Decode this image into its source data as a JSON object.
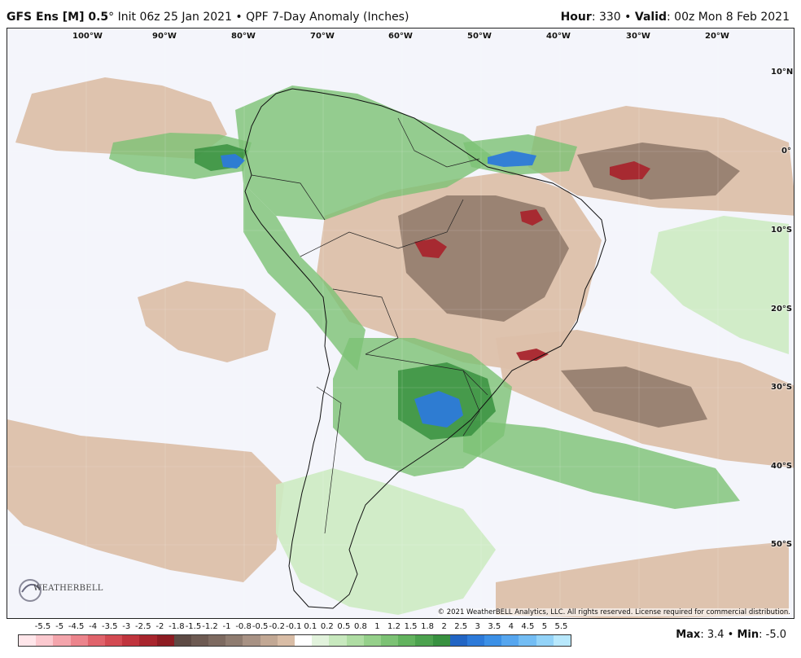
{
  "header": {
    "model": "GFS Ens [M] 0.5",
    "degree": "°",
    "init": " Init 06z 25 Jan 2021",
    "bullet": " • ",
    "product": "QPF 7-Day Anomaly (Inches)",
    "hour_label": "Hour",
    "hour_value": ": 330",
    "valid_label": "Valid",
    "valid_value": ": 00z Mon 8 Feb 2021"
  },
  "map": {
    "longitude_labels": [
      "100°W",
      "90°W",
      "80°W",
      "70°W",
      "60°W",
      "50°W",
      "40°W",
      "30°W",
      "20°W"
    ],
    "latitude_labels": [
      "10°N",
      "0°",
      "10°S",
      "20°S",
      "30°S",
      "40°S",
      "50°S"
    ],
    "copyright": "© 2021 WeatherBELL Analytics, LLC. All rights reserved. License required for commercial distribution.",
    "logo_text": "WEATHERBELL",
    "logo_icon": "weatherbell-logo-icon"
  },
  "legend": {
    "tick_labels": [
      "-5.5",
      "-5",
      "-4.5",
      "-4",
      "-3.5",
      "-3",
      "-2.5",
      "-2",
      "-1.8",
      "-1.5",
      "-1.2",
      "-1",
      "-0.8",
      "-0.5",
      "-0.2",
      "-0.1",
      "0.1",
      "0.2",
      "0.5",
      "0.8",
      "1",
      "1.2",
      "1.5",
      "1.8",
      "2",
      "2.5",
      "3",
      "3.5",
      "4",
      "4.5",
      "5",
      "5.5"
    ],
    "colors": [
      "#ffe6ea",
      "#fbc9cf",
      "#f4a5ac",
      "#ec848c",
      "#e0636b",
      "#d34a52",
      "#c0343d",
      "#a8252d",
      "#8d1c22",
      "#5d4a44",
      "#6d5a52",
      "#7d6a60",
      "#8f7c70",
      "#a89284",
      "#c2a894",
      "#d9bda6",
      "#ffffff",
      "#e2f3dc",
      "#c8e9be",
      "#afdda3",
      "#95d08a",
      "#7cc274",
      "#62b35e",
      "#4ca24e",
      "#389140",
      "#2265c4",
      "#2d7ad9",
      "#3c90e6",
      "#56a6ef",
      "#73bdf4",
      "#93d3f8",
      "#b8e8fc"
    ],
    "max_label": "Max",
    "max_value": ": 3.4",
    "min_label": "Min",
    "min_value": ": -5.0",
    "separator": " • "
  },
  "fields": [
    {
      "name": "tan-west-pacific-band",
      "tone": "dry-light",
      "pts": [
        [
          30,
          80
        ],
        [
          120,
          60
        ],
        [
          190,
          70
        ],
        [
          250,
          90
        ],
        [
          270,
          130
        ],
        [
          230,
          160
        ],
        [
          150,
          155
        ],
        [
          60,
          150
        ],
        [
          10,
          140
        ]
      ]
    },
    {
      "name": "green-east-pacific-band",
      "tone": "wet-mid",
      "pts": [
        [
          130,
          140
        ],
        [
          200,
          128
        ],
        [
          260,
          130
        ],
        [
          300,
          140
        ],
        [
          290,
          175
        ],
        [
          230,
          185
        ],
        [
          160,
          175
        ],
        [
          125,
          160
        ]
      ]
    },
    {
      "name": "tan-pacific-southern-gyre",
      "tone": "dry-light",
      "pts": [
        [
          0,
          480
        ],
        [
          90,
          500
        ],
        [
          200,
          510
        ],
        [
          300,
          520
        ],
        [
          340,
          560
        ],
        [
          330,
          640
        ],
        [
          290,
          680
        ],
        [
          200,
          665
        ],
        [
          110,
          640
        ],
        [
          20,
          610
        ],
        [
          0,
          590
        ]
      ]
    },
    {
      "name": "tan-pacific-mid",
      "tone": "dry-light",
      "pts": [
        [
          160,
          330
        ],
        [
          220,
          310
        ],
        [
          290,
          320
        ],
        [
          330,
          350
        ],
        [
          320,
          395
        ],
        [
          270,
          410
        ],
        [
          210,
          395
        ],
        [
          170,
          365
        ]
      ]
    },
    {
      "name": "tan-atlantic-equatorial",
      "tone": "dry-light",
      "pts": [
        [
          650,
          120
        ],
        [
          760,
          95
        ],
        [
          880,
          110
        ],
        [
          960,
          140
        ],
        [
          970,
          230
        ],
        [
          900,
          225
        ],
        [
          800,
          220
        ],
        [
          700,
          205
        ],
        [
          640,
          170
        ]
      ]
    },
    {
      "name": "brown-atlantic-equatorial-core",
      "tone": "dry-dark",
      "pts": [
        [
          700,
          155
        ],
        [
          780,
          140
        ],
        [
          860,
          150
        ],
        [
          900,
          175
        ],
        [
          870,
          205
        ],
        [
          790,
          210
        ],
        [
          720,
          195
        ]
      ]
    },
    {
      "name": "tan-brazil-interior",
      "tone": "dry-light",
      "pts": [
        [
          390,
          230
        ],
        [
          470,
          200
        ],
        [
          550,
          185
        ],
        [
          620,
          175
        ],
        [
          690,
          200
        ],
        [
          730,
          260
        ],
        [
          710,
          340
        ],
        [
          680,
          390
        ],
        [
          630,
          420
        ],
        [
          560,
          410
        ],
        [
          480,
          380
        ],
        [
          420,
          360
        ],
        [
          380,
          300
        ]
      ]
    },
    {
      "name": "brown-brazil-core",
      "tone": "dry-dark",
      "pts": [
        [
          480,
          230
        ],
        [
          540,
          205
        ],
        [
          600,
          205
        ],
        [
          660,
          220
        ],
        [
          690,
          270
        ],
        [
          660,
          330
        ],
        [
          610,
          360
        ],
        [
          540,
          350
        ],
        [
          490,
          300
        ]
      ]
    },
    {
      "name": "tan-south-atlantic",
      "tone": "dry-light",
      "pts": [
        [
          600,
          380
        ],
        [
          700,
          370
        ],
        [
          800,
          390
        ],
        [
          900,
          410
        ],
        [
          970,
          440
        ],
        [
          970,
          540
        ],
        [
          880,
          530
        ],
        [
          780,
          510
        ],
        [
          680,
          470
        ],
        [
          610,
          440
        ]
      ]
    },
    {
      "name": "brown-south-atlantic-core",
      "tone": "dry-dark",
      "pts": [
        [
          680,
          420
        ],
        [
          760,
          415
        ],
        [
          840,
          440
        ],
        [
          860,
          480
        ],
        [
          800,
          490
        ],
        [
          720,
          470
        ]
      ]
    },
    {
      "name": "green-amazon-north",
      "tone": "wet-mid",
      "pts": [
        [
          280,
          100
        ],
        [
          350,
          70
        ],
        [
          430,
          80
        ],
        [
          500,
          110
        ],
        [
          560,
          130
        ],
        [
          600,
          160
        ],
        [
          540,
          195
        ],
        [
          460,
          210
        ],
        [
          390,
          235
        ],
        [
          330,
          230
        ],
        [
          290,
          190
        ]
      ]
    },
    {
      "name": "green-andes-strip",
      "tone": "wet-mid",
      "pts": [
        [
          290,
          190
        ],
        [
          330,
          230
        ],
        [
          360,
          280
        ],
        [
          400,
          320
        ],
        [
          440,
          370
        ],
        [
          430,
          420
        ],
        [
          410,
          400
        ],
        [
          370,
          350
        ],
        [
          320,
          300
        ],
        [
          290,
          250
        ]
      ]
    },
    {
      "name": "green-guianas-strip",
      "tone": "wet-mid",
      "pts": [
        [
          560,
          140
        ],
        [
          640,
          130
        ],
        [
          700,
          145
        ],
        [
          690,
          175
        ],
        [
          620,
          180
        ],
        [
          570,
          170
        ]
      ]
    },
    {
      "name": "green-plata-basin",
      "tone": "wet-mid",
      "pts": [
        [
          420,
          380
        ],
        [
          500,
          380
        ],
        [
          570,
          400
        ],
        [
          620,
          440
        ],
        [
          610,
          500
        ],
        [
          560,
          540
        ],
        [
          500,
          550
        ],
        [
          440,
          530
        ],
        [
          400,
          490
        ],
        [
          400,
          430
        ]
      ]
    },
    {
      "name": "green-south-atlantic-band",
      "tone": "wet-mid",
      "pts": [
        [
          560,
          480
        ],
        [
          660,
          490
        ],
        [
          760,
          510
        ],
        [
          870,
          540
        ],
        [
          900,
          580
        ],
        [
          820,
          590
        ],
        [
          720,
          570
        ],
        [
          620,
          540
        ],
        [
          560,
          520
        ]
      ]
    },
    {
      "name": "green-patagonia",
      "tone": "wet-light",
      "pts": [
        [
          330,
          560
        ],
        [
          400,
          540
        ],
        [
          470,
          560
        ],
        [
          560,
          590
        ],
        [
          600,
          640
        ],
        [
          560,
          700
        ],
        [
          480,
          720
        ],
        [
          420,
          710
        ],
        [
          360,
          680
        ],
        [
          330,
          620
        ]
      ]
    },
    {
      "name": "green-atlantic-east",
      "tone": "wet-light",
      "pts": [
        [
          800,
          250
        ],
        [
          880,
          230
        ],
        [
          960,
          240
        ],
        [
          960,
          400
        ],
        [
          900,
          380
        ],
        [
          830,
          340
        ],
        [
          790,
          300
        ]
      ]
    },
    {
      "name": "tan-south-atlantic-far",
      "tone": "dry-light",
      "pts": [
        [
          600,
          680
        ],
        [
          720,
          660
        ],
        [
          850,
          640
        ],
        [
          960,
          630
        ],
        [
          960,
          720
        ],
        [
          760,
          725
        ],
        [
          600,
          720
        ]
      ]
    },
    {
      "name": "darkgreen-plata-core",
      "tone": "wet-dark",
      "pts": [
        [
          480,
          420
        ],
        [
          540,
          410
        ],
        [
          590,
          430
        ],
        [
          600,
          470
        ],
        [
          570,
          500
        ],
        [
          520,
          505
        ],
        [
          480,
          480
        ]
      ]
    },
    {
      "name": "blue-plata-core",
      "tone": "wet-blue",
      "pts": [
        [
          500,
          455
        ],
        [
          530,
          445
        ],
        [
          555,
          455
        ],
        [
          560,
          475
        ],
        [
          540,
          490
        ],
        [
          510,
          485
        ]
      ]
    },
    {
      "name": "blue-guianas",
      "tone": "wet-blue",
      "pts": [
        [
          590,
          158
        ],
        [
          620,
          150
        ],
        [
          650,
          156
        ],
        [
          645,
          168
        ],
        [
          610,
          170
        ],
        [
          590,
          166
        ]
      ]
    },
    {
      "name": "red-atlantic-equatorial",
      "tone": "dry-red",
      "pts": [
        [
          740,
          170
        ],
        [
          770,
          163
        ],
        [
          790,
          172
        ],
        [
          780,
          185
        ],
        [
          755,
          186
        ],
        [
          740,
          180
        ]
      ]
    },
    {
      "name": "red-brazil-west",
      "tone": "dry-red",
      "pts": [
        [
          500,
          262
        ],
        [
          525,
          258
        ],
        [
          540,
          268
        ],
        [
          530,
          282
        ],
        [
          510,
          280
        ]
      ]
    },
    {
      "name": "red-brazil-east",
      "tone": "dry-red",
      "pts": [
        [
          630,
          225
        ],
        [
          650,
          222
        ],
        [
          658,
          235
        ],
        [
          645,
          242
        ],
        [
          632,
          237
        ]
      ]
    },
    {
      "name": "red-southeast-brazil",
      "tone": "dry-red",
      "pts": [
        [
          625,
          398
        ],
        [
          650,
          393
        ],
        [
          665,
          400
        ],
        [
          650,
          408
        ],
        [
          630,
          407
        ]
      ]
    },
    {
      "name": "darkgreen-pacific-core",
      "tone": "wet-dark",
      "pts": [
        [
          230,
          148
        ],
        [
          270,
          142
        ],
        [
          295,
          150
        ],
        [
          285,
          170
        ],
        [
          250,
          175
        ],
        [
          230,
          165
        ]
      ]
    },
    {
      "name": "blue-pacific-core",
      "tone": "wet-blue",
      "pts": [
        [
          262,
          156
        ],
        [
          280,
          154
        ],
        [
          292,
          162
        ],
        [
          282,
          172
        ],
        [
          265,
          170
        ]
      ]
    }
  ],
  "coast": [
    [
      300,
      180
    ],
    [
      292,
      200
    ],
    [
      300,
      222
    ],
    [
      312,
      240
    ],
    [
      330,
      262
    ],
    [
      350,
      285
    ],
    [
      372,
      310
    ],
    [
      388,
      330
    ],
    [
      392,
      360
    ],
    [
      390,
      390
    ],
    [
      396,
      420
    ],
    [
      388,
      450
    ],
    [
      384,
      480
    ],
    [
      376,
      510
    ],
    [
      370,
      540
    ],
    [
      362,
      570
    ],
    [
      356,
      600
    ],
    [
      350,
      630
    ],
    [
      346,
      660
    ],
    [
      352,
      690
    ],
    [
      370,
      710
    ],
    [
      400,
      712
    ],
    [
      420,
      695
    ],
    [
      430,
      670
    ],
    [
      420,
      640
    ],
    [
      430,
      610
    ],
    [
      440,
      585
    ],
    [
      460,
      565
    ],
    [
      480,
      545
    ],
    [
      510,
      525
    ],
    [
      540,
      505
    ],
    [
      570,
      480
    ],
    [
      600,
      445
    ],
    [
      620,
      420
    ],
    [
      650,
      405
    ],
    [
      680,
      390
    ],
    [
      700,
      360
    ],
    [
      710,
      320
    ],
    [
      725,
      290
    ],
    [
      735,
      260
    ],
    [
      730,
      235
    ],
    [
      705,
      210
    ],
    [
      670,
      190
    ],
    [
      630,
      180
    ],
    [
      590,
      170
    ],
    [
      560,
      150
    ],
    [
      530,
      130
    ],
    [
      500,
      110
    ],
    [
      460,
      95
    ],
    [
      420,
      85
    ],
    [
      380,
      78
    ],
    [
      350,
      74
    ],
    [
      330,
      80
    ],
    [
      312,
      96
    ],
    [
      300,
      120
    ],
    [
      292,
      150
    ],
    [
      300,
      180
    ]
  ]
}
